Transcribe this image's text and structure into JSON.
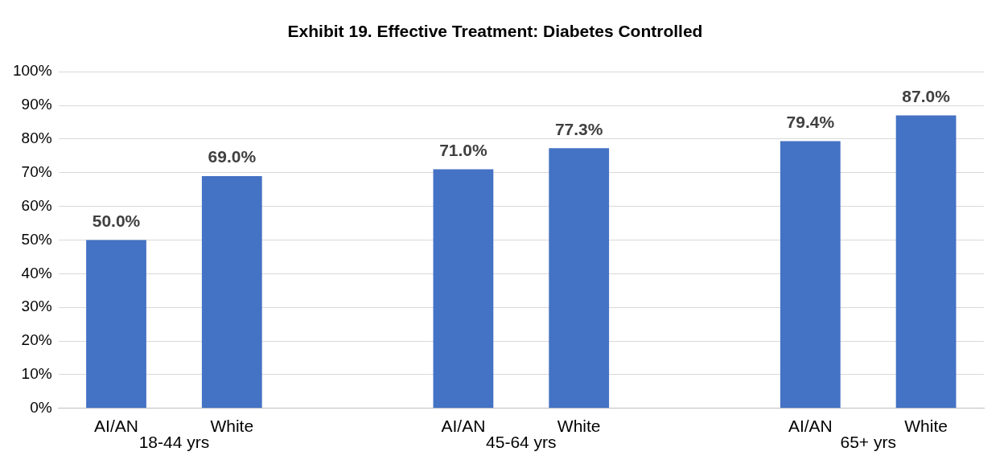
{
  "chart_data": {
    "type": "bar",
    "title": "Exhibit 19. Effective Treatment: Diabetes Controlled",
    "categories": [
      "AI/AN",
      "White",
      null,
      "AI/AN",
      "White",
      null,
      "AI/AN",
      "White"
    ],
    "values": [
      50.0,
      69.0,
      null,
      71.0,
      77.3,
      null,
      79.4,
      87.0
    ],
    "value_labels": [
      "50.0%",
      "69.0%",
      null,
      "71.0%",
      "77.3%",
      null,
      "79.4%",
      "87.0%"
    ],
    "color": "#4472c4",
    "ylim": [
      0,
      100
    ],
    "yticks": [
      {
        "value": 0,
        "label": "0%"
      },
      {
        "value": 10,
        "label": "10%"
      },
      {
        "value": 20,
        "label": "20%"
      },
      {
        "value": 30,
        "label": "30%"
      },
      {
        "value": 40,
        "label": "40%"
      },
      {
        "value": 50,
        "label": "50%"
      },
      {
        "value": 60,
        "label": "60%"
      },
      {
        "value": 70,
        "label": "70%"
      },
      {
        "value": 80,
        "label": "80%"
      },
      {
        "value": 90,
        "label": "90%"
      },
      {
        "value": 100,
        "label": "100%"
      }
    ],
    "grid": "y",
    "annotations": [
      "18-44 yrs",
      "45-64 yrs",
      "65+ yrs"
    ]
  }
}
